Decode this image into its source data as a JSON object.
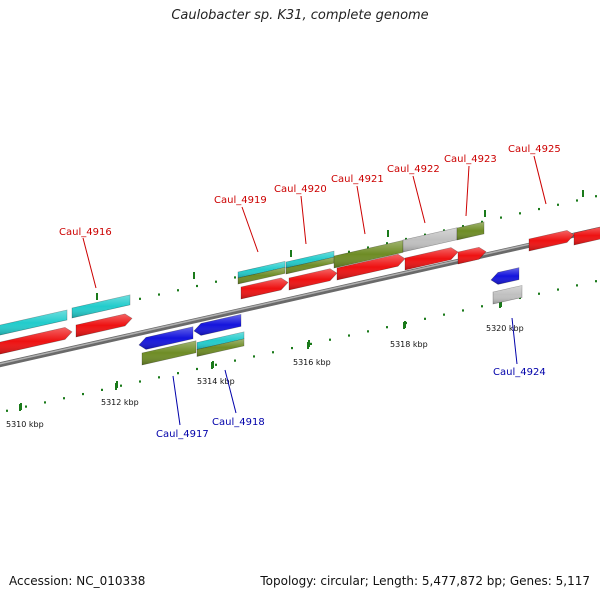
{
  "title": "Caulobacter sp. K31, complete genome",
  "footer": {
    "accession": "Accession: NC_010338",
    "stats": "Topology: circular; Length: 5,477,872 bp; Genes: 5,117"
  },
  "colors": {
    "cds_red": "#ee1111",
    "cds_cyan": "#22cccc",
    "cds_olive": "#6e8c25",
    "cds_blue": "#1414dd",
    "cds_gray": "#c0c0c0",
    "label_top": "#cc0000",
    "label_bottom": "#0000aa",
    "backbone": "#808080",
    "tick_mark": "#1a7a1a"
  },
  "scale": {
    "ticks_kbp": [
      5310,
      5312,
      5314,
      5316,
      5318,
      5320
    ],
    "tick_labels": [
      "5310 kbp",
      "5312 kbp",
      "5314 kbp",
      "5316 kbp",
      "5318 kbp",
      "5320 kbp"
    ]
  },
  "genes": {
    "top": [
      {
        "name": "Caul_4916"
      },
      {
        "name": "Caul_4919"
      },
      {
        "name": "Caul_4920"
      },
      {
        "name": "Caul_4921"
      },
      {
        "name": "Caul_4922"
      },
      {
        "name": "Caul_4923"
      },
      {
        "name": "Caul_4925"
      }
    ],
    "bottom": [
      {
        "name": "Caul_4917"
      },
      {
        "name": "Caul_4918"
      },
      {
        "name": "Caul_4924"
      }
    ]
  }
}
